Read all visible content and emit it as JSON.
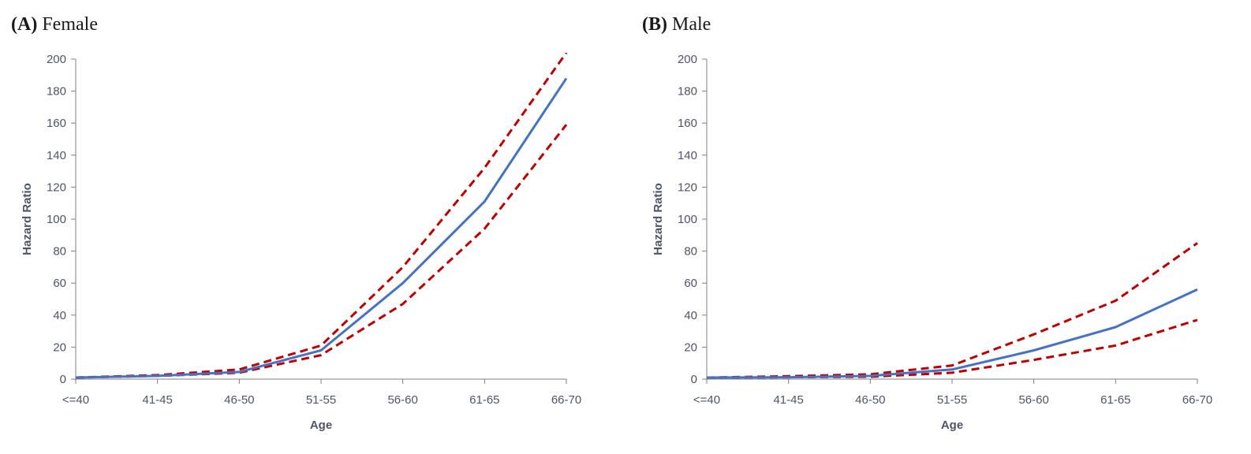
{
  "chart_data": [
    {
      "type": "line",
      "panel_label": "(A)",
      "title": "Female",
      "xlabel": "Age",
      "ylabel": "Hazard Ratio",
      "categories": [
        "<=40",
        "41-45",
        "46-50",
        "51-55",
        "56-60",
        "61-65",
        "66-70"
      ],
      "ylim": [
        0,
        200
      ],
      "yticks": [
        0,
        20,
        40,
        60,
        80,
        100,
        120,
        140,
        160,
        180,
        200
      ],
      "grid": false,
      "legend": "none",
      "series": [
        {
          "role": "estimate",
          "style": "solid",
          "color": "#4472c4",
          "values": [
            1,
            2,
            4.5,
            18,
            60,
            111,
            188
          ]
        },
        {
          "role": "upper",
          "style": "dashed",
          "color": "#c00000",
          "values": [
            1,
            2.5,
            6,
            21,
            70,
            132,
            204
          ]
        },
        {
          "role": "lower",
          "style": "dashed",
          "color": "#c00000",
          "values": [
            1,
            2,
            4,
            15,
            47,
            94,
            159
          ]
        }
      ]
    },
    {
      "type": "line",
      "panel_label": "(B)",
      "title": "Male",
      "xlabel": "Age",
      "ylabel": "Hazard Ratio",
      "categories": [
        "<=40",
        "41-45",
        "46-50",
        "51-55",
        "56-60",
        "61-65",
        "66-70"
      ],
      "ylim": [
        0,
        200
      ],
      "yticks": [
        0,
        20,
        40,
        60,
        80,
        100,
        120,
        140,
        160,
        180,
        200
      ],
      "grid": false,
      "legend": "none",
      "series": [
        {
          "role": "estimate",
          "style": "solid",
          "color": "#4472c4",
          "values": [
            1,
            1.2,
            2,
            6,
            18,
            32.5,
            56
          ]
        },
        {
          "role": "upper",
          "style": "dashed",
          "color": "#c00000",
          "values": [
            1,
            1.8,
            3,
            8.5,
            28,
            49,
            85
          ]
        },
        {
          "role": "lower",
          "style": "dashed",
          "color": "#c00000",
          "values": [
            1,
            1.2,
            1.5,
            4,
            12,
            21,
            37
          ]
        }
      ]
    }
  ]
}
